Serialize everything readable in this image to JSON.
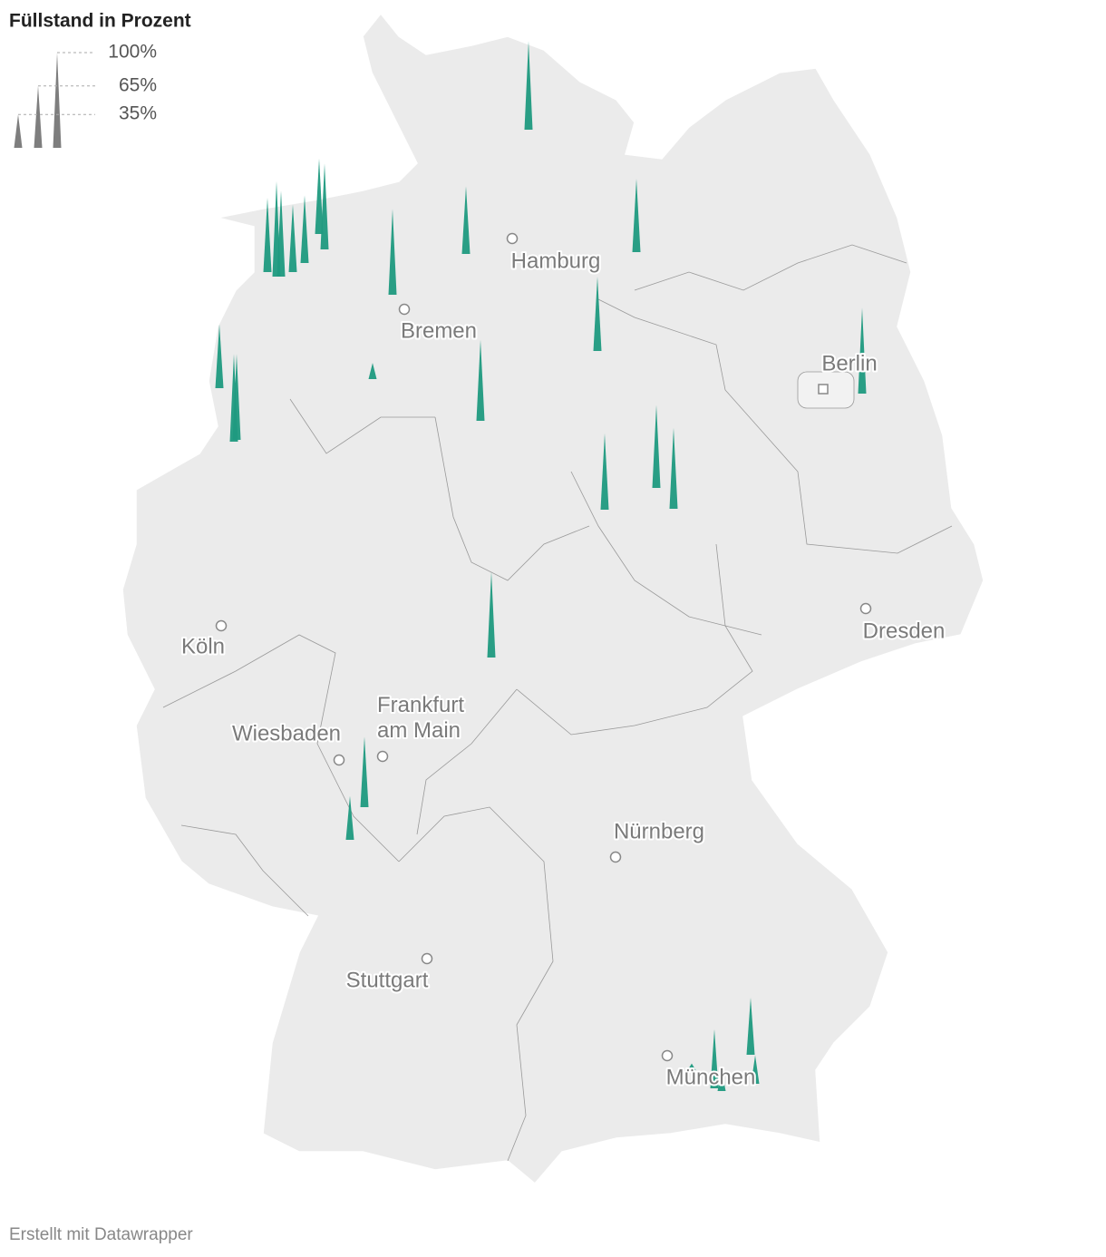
{
  "legend": {
    "title": "Füllstand in Prozent",
    "color": "#777777",
    "ticks": [
      {
        "value": 100,
        "label": "100%"
      },
      {
        "value": 65,
        "label": "65%"
      },
      {
        "value": 35,
        "label": "35%"
      }
    ]
  },
  "reservoirs": {
    "color": "#1f9a80",
    "values": [
      93,
      78,
      100,
      90,
      71,
      71,
      79,
      90,
      90,
      71,
      77,
      78,
      90,
      67,
      92,
      90,
      17,
      85,
      87,
      85,
      80,
      90,
      74,
      46,
      60,
      62,
      30,
      22,
      7
    ]
  },
  "cities": [
    "Hamburg",
    "Bremen",
    "Berlin",
    "Dresden",
    "Köln",
    "Frankfurt am Main",
    "Wiesbaden",
    "Nürnberg",
    "Stuttgart",
    "München"
  ],
  "footer": "Erstellt mit Datawrapper"
}
